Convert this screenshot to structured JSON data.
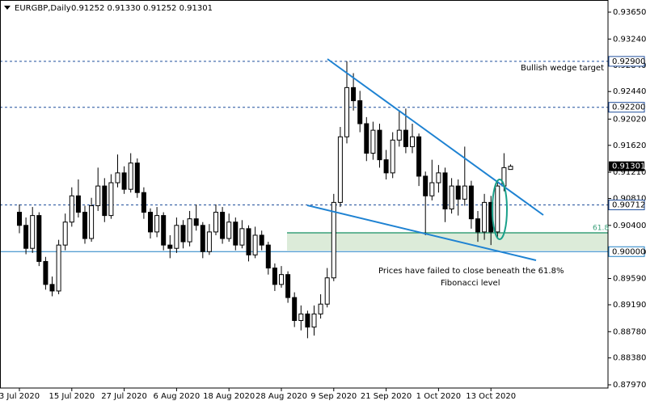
{
  "chart_data": {
    "type": "candlestick",
    "title": "EURGBP,Daily",
    "ohlc_label": "0.91252 0.91330 0.91252 0.91301",
    "categories": [
      "3 Jul 2020",
      null,
      null,
      null,
      null,
      null,
      null,
      null,
      "15 Jul 2020",
      null,
      null,
      null,
      null,
      null,
      null,
      null,
      "27 Jul 2020",
      null,
      null,
      null,
      null,
      null,
      null,
      null,
      "6 Aug 2020",
      null,
      null,
      null,
      null,
      null,
      null,
      null,
      "18 Aug 2020",
      null,
      null,
      null,
      null,
      null,
      null,
      null,
      "28 Aug 2020",
      null,
      null,
      null,
      null,
      null,
      null,
      null,
      "9 Sep 2020",
      null,
      null,
      null,
      null,
      null,
      null,
      null,
      "21 Sep 2020",
      null,
      null,
      null,
      null,
      null,
      null,
      null,
      "1 Oct 2020",
      null,
      null,
      null,
      null,
      null,
      null,
      null,
      "13 Oct 2020",
      null,
      null,
      null
    ],
    "open": [
      0.906,
      0.904,
      0.9005,
      0.9055,
      0.8985,
      0.895,
      0.894,
      0.901,
      0.9045,
      0.9085,
      0.906,
      0.902,
      0.907,
      0.91,
      0.9055,
      0.9105,
      0.912,
      0.9095,
      0.9135,
      0.909,
      0.906,
      0.903,
      0.9055,
      0.901,
      0.9005,
      0.904,
      0.9015,
      0.905,
      0.904,
      0.9,
      0.903,
      0.906,
      0.902,
      0.9045,
      0.901,
      0.9035,
      0.8995,
      0.9025,
      0.901,
      0.8975,
      0.895,
      0.8965,
      0.893,
      0.8895,
      0.8905,
      0.8885,
      0.8905,
      0.892,
      0.896,
      0.9075,
      0.9175,
      0.925,
      0.923,
      0.9195,
      0.915,
      0.9185,
      0.914,
      0.912,
      0.917,
      0.9185,
      0.916,
      0.9175,
      0.9115,
      0.9085,
      0.9105,
      0.912,
      0.9065,
      0.91,
      0.908,
      0.91,
      0.905,
      0.903,
      0.9075,
      0.903,
      0.91,
      0.91252
    ],
    "high": [
      0.9072,
      0.9052,
      0.9068,
      0.906,
      0.8992,
      0.8962,
      0.9018,
      0.9058,
      0.9098,
      0.911,
      0.907,
      0.9082,
      0.9128,
      0.9112,
      0.9118,
      0.9148,
      0.913,
      0.915,
      0.9142,
      0.9098,
      0.9066,
      0.9068,
      0.906,
      0.9025,
      0.9052,
      0.9048,
      0.9062,
      0.9072,
      0.9045,
      0.9042,
      0.9072,
      0.9068,
      0.9058,
      0.9052,
      0.9048,
      0.904,
      0.9038,
      0.9032,
      0.9015,
      0.8982,
      0.8978,
      0.897,
      0.8938,
      0.8918,
      0.891,
      0.8918,
      0.8935,
      0.8975,
      0.9088,
      0.919,
      0.929,
      0.9272,
      0.9245,
      0.9205,
      0.9198,
      0.9195,
      0.9155,
      0.9182,
      0.9215,
      0.9218,
      0.9195,
      0.918,
      0.9122,
      0.914,
      0.9132,
      0.9128,
      0.9112,
      0.911,
      0.916,
      0.9108,
      0.9062,
      0.9088,
      0.9085,
      0.9108,
      0.915,
      0.9133
    ],
    "low": [
      0.9028,
      0.8996,
      0.8998,
      0.8978,
      0.8942,
      0.8932,
      0.8935,
      0.9002,
      0.9038,
      0.9052,
      0.9012,
      0.9015,
      0.9062,
      0.9045,
      0.905,
      0.9098,
      0.9088,
      0.909,
      0.9082,
      0.905,
      0.902,
      0.9022,
      0.9002,
      0.899,
      0.8998,
      0.9005,
      0.9008,
      0.9032,
      0.899,
      0.8995,
      0.9025,
      0.9012,
      0.9015,
      0.9002,
      0.9005,
      0.8985,
      0.899,
      0.9002,
      0.8965,
      0.894,
      0.8945,
      0.8922,
      0.8885,
      0.888,
      0.8868,
      0.8872,
      0.8898,
      0.8915,
      0.8955,
      0.9068,
      0.9165,
      0.9215,
      0.9182,
      0.9138,
      0.914,
      0.9128,
      0.911,
      0.9112,
      0.916,
      0.915,
      0.915,
      0.91,
      0.9025,
      0.9078,
      0.909,
      0.9045,
      0.9058,
      0.9055,
      0.907,
      0.9035,
      0.9015,
      0.9018,
      0.901,
      0.902,
      0.9092,
      0.91252
    ],
    "close": [
      0.904,
      0.9005,
      0.9055,
      0.8985,
      0.895,
      0.894,
      0.901,
      0.9045,
      0.9085,
      0.906,
      0.902,
      0.907,
      0.91,
      0.9055,
      0.9105,
      0.912,
      0.9095,
      0.9135,
      0.909,
      0.906,
      0.903,
      0.9055,
      0.901,
      0.9005,
      0.904,
      0.9015,
      0.905,
      0.904,
      0.9,
      0.903,
      0.906,
      0.902,
      0.9045,
      0.901,
      0.9035,
      0.8995,
      0.9025,
      0.901,
      0.8975,
      0.895,
      0.8965,
      0.893,
      0.8895,
      0.8905,
      0.8885,
      0.8905,
      0.892,
      0.896,
      0.9075,
      0.9175,
      0.925,
      0.923,
      0.9195,
      0.915,
      0.9185,
      0.914,
      0.912,
      0.917,
      0.9185,
      0.916,
      0.9175,
      0.9115,
      0.9085,
      0.9105,
      0.912,
      0.9065,
      0.91,
      0.908,
      0.91,
      0.905,
      0.903,
      0.9075,
      0.903,
      0.91,
      0.9128,
      0.91301
    ],
    "ylim": [
      0.87921,
      0.93835
    ],
    "yticks": [
      {
        "value": 0.9365,
        "label": "0.93650"
      },
      {
        "value": 0.9324,
        "label": "0.93240"
      },
      {
        "value": 0.9284,
        "label": "0.92840"
      },
      {
        "value": 0.9244,
        "label": "0.92440"
      },
      {
        "value": 0.9202,
        "label": "0.92020"
      },
      {
        "value": 0.9162,
        "label": "0.91620"
      },
      {
        "value": 0.9121,
        "label": "0.91210"
      },
      {
        "value": 0.9081,
        "label": "0.90810"
      },
      {
        "value": 0.904,
        "label": "0.90400"
      },
      {
        "value": 0.8999,
        "label": "0.89990"
      },
      {
        "value": 0.8959,
        "label": "0.89590"
      },
      {
        "value": 0.8919,
        "label": "0.89190"
      },
      {
        "value": 0.8878,
        "label": "0.88780"
      },
      {
        "value": 0.8838,
        "label": "0.88380"
      },
      {
        "value": 0.8797,
        "label": "0.87970"
      }
    ],
    "levels": [
      {
        "value": 0.929,
        "label": "0.92900",
        "style": "dashed",
        "color": "#1f4e9c"
      },
      {
        "value": 0.922,
        "label": "0.92200",
        "style": "dashed",
        "color": "#1f4e9c"
      },
      {
        "value": 0.90712,
        "label": "0.90712",
        "style": "dashed",
        "color": "#1f4e9c"
      },
      {
        "value": 0.9,
        "label": "0.90000",
        "style": "solid",
        "color": "#1f7fc4"
      }
    ],
    "last_price": {
      "value": 0.91301,
      "label": "0.91301"
    },
    "fib_label": "61.8",
    "annotations": [
      "Bullish wedge target",
      "Prices have failed to close beneath the 61.8%",
      "Fibonacci level"
    ]
  }
}
